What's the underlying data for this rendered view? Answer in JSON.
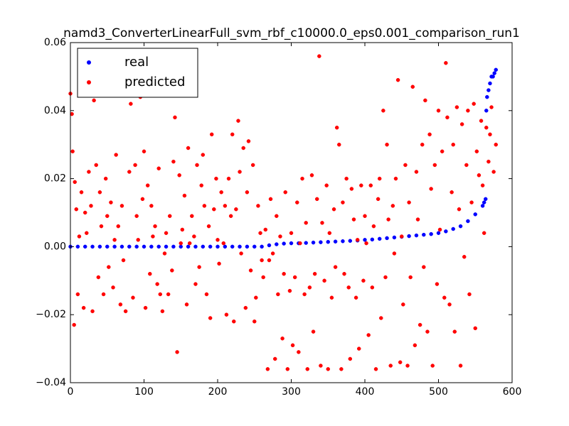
{
  "chart_data": {
    "type": "scatter",
    "title": "namd3_ConverterLinearFull_svm_rbf_c10000.0_eps0.001_comparison_run1",
    "xlim": [
      0,
      600
    ],
    "xticks": [
      0,
      100,
      200,
      300,
      400,
      500,
      600
    ],
    "ylim": [
      -0.04,
      0.06
    ],
    "yticks": [
      {
        "value": -0.04,
        "label": "−0.04"
      },
      {
        "value": -0.02,
        "label": "−0.02"
      },
      {
        "value": 0,
        "label": "0.00"
      },
      0.02,
      0.04,
      0.06
    ],
    "legend": "upper left",
    "series": [
      {
        "name": "real",
        "color": "#0000ff",
        "x": [
          0,
          10,
          20,
          30,
          40,
          50,
          60,
          70,
          80,
          90,
          100,
          110,
          120,
          130,
          140,
          150,
          160,
          170,
          180,
          190,
          200,
          210,
          220,
          230,
          240,
          250,
          260,
          270,
          280,
          290,
          300,
          310,
          320,
          330,
          340,
          350,
          360,
          370,
          380,
          390,
          400,
          410,
          420,
          430,
          440,
          450,
          460,
          470,
          480,
          490,
          500,
          510,
          520,
          530,
          540,
          550,
          560,
          562,
          564,
          565,
          566,
          568,
          570,
          572,
          574,
          576,
          578
        ],
        "values": [
          0,
          0,
          0,
          0,
          0,
          0,
          0,
          0,
          0,
          0,
          0,
          0,
          0,
          0,
          0,
          0,
          0,
          0,
          0,
          0,
          0,
          0,
          0,
          0,
          0,
          0,
          0,
          0.0004,
          0.0007,
          0.0009,
          0.001,
          0.001,
          0.0011,
          0.0012,
          0.0013,
          0.0014,
          0.0015,
          0.0016,
          0.0017,
          0.0018,
          0.002,
          0.0021,
          0.0023,
          0.0025,
          0.0027,
          0.0029,
          0.0031,
          0.0033,
          0.0035,
          0.0037,
          0.004,
          0.0045,
          0.0052,
          0.006,
          0.0075,
          0.0095,
          0.012,
          0.013,
          0.014,
          0.04,
          0.044,
          0.046,
          0.048,
          0.05,
          0.05,
          0.051,
          0.052
        ]
      },
      {
        "name": "predicted",
        "color": "#ff0000",
        "x": [
          0,
          2,
          3,
          5,
          6,
          8,
          10,
          12,
          15,
          18,
          20,
          22,
          25,
          28,
          30,
          32,
          35,
          38,
          40,
          42,
          45,
          48,
          50,
          52,
          55,
          58,
          60,
          62,
          65,
          68,
          70,
          72,
          75,
          78,
          80,
          82,
          85,
          88,
          90,
          92,
          95,
          98,
          100,
          102,
          105,
          108,
          110,
          112,
          115,
          118,
          120,
          122,
          125,
          128,
          130,
          133,
          135,
          138,
          140,
          142,
          145,
          148,
          150,
          152,
          155,
          158,
          160,
          162,
          165,
          168,
          170,
          172,
          175,
          178,
          180,
          182,
          185,
          188,
          190,
          192,
          195,
          198,
          200,
          202,
          205,
          208,
          210,
          212,
          215,
          218,
          220,
          222,
          225,
          228,
          230,
          232,
          235,
          238,
          240,
          242,
          245,
          248,
          250,
          252,
          255,
          258,
          260,
          262,
          265,
          268,
          270,
          272,
          275,
          278,
          280,
          282,
          285,
          288,
          290,
          292,
          295,
          298,
          300,
          302,
          305,
          308,
          310,
          312,
          315,
          318,
          320,
          322,
          325,
          328,
          330,
          332,
          335,
          338,
          340,
          342,
          345,
          348,
          350,
          352,
          355,
          358,
          360,
          362,
          365,
          368,
          370,
          372,
          375,
          378,
          380,
          382,
          385,
          388,
          390,
          392,
          395,
          398,
          400,
          402,
          405,
          408,
          410,
          412,
          415,
          418,
          420,
          422,
          425,
          428,
          430,
          432,
          435,
          438,
          440,
          442,
          445,
          448,
          450,
          452,
          455,
          458,
          460,
          462,
          465,
          468,
          470,
          472,
          475,
          478,
          480,
          482,
          485,
          488,
          490,
          492,
          495,
          498,
          500,
          502,
          505,
          508,
          510,
          512,
          515,
          518,
          520,
          522,
          525,
          528,
          530,
          532,
          535,
          538,
          540,
          542,
          545,
          548,
          550,
          552,
          555,
          558,
          560,
          562,
          565,
          568,
          570,
          572,
          575,
          578
        ],
        "values": [
          0.045,
          0.039,
          0.028,
          -0.023,
          0.019,
          0.011,
          -0.014,
          0.003,
          0.016,
          -0.018,
          0.01,
          0.004,
          0.022,
          0.012,
          -0.019,
          0.043,
          0.024,
          -0.009,
          0.016,
          0.006,
          -0.014,
          0.02,
          0.009,
          -0.006,
          0.013,
          -0.012,
          0.002,
          0.027,
          0.006,
          -0.017,
          0.012,
          -0.004,
          -0.019,
          0.045,
          0.022,
          0.042,
          -0.015,
          0.024,
          0.009,
          0.002,
          0.044,
          0.014,
          0.028,
          -0.018,
          0.018,
          -0.008,
          0.012,
          0.003,
          0.006,
          -0.011,
          0.023,
          -0.014,
          -0.019,
          -0.002,
          0.004,
          -0.014,
          0.009,
          -0.007,
          0.025,
          0.038,
          -0.031,
          0.021,
          0.001,
          0.005,
          0.015,
          -0.017,
          0.029,
          0.001,
          0.009,
          0.003,
          -0.011,
          0.024,
          -0.006,
          0.018,
          0.027,
          0.012,
          -0.014,
          0.006,
          -0.021,
          0.033,
          0.011,
          0.02,
          0.002,
          -0.005,
          0.016,
          0.001,
          0.012,
          -0.02,
          0.02,
          0.009,
          0.033,
          -0.022,
          0.011,
          0.037,
          0.022,
          -0.002,
          0.029,
          -0.018,
          0.016,
          0.031,
          -0.007,
          0.024,
          -0.022,
          -0.015,
          0.012,
          0.004,
          -0.004,
          -0.009,
          0.005,
          -0.036,
          -0.004,
          0.014,
          -0.002,
          -0.033,
          0.009,
          -0.014,
          0.003,
          -0.027,
          -0.008,
          0.016,
          -0.036,
          -0.013,
          0.004,
          -0.029,
          -0.009,
          0.013,
          -0.031,
          0.001,
          0.02,
          -0.014,
          0.007,
          -0.036,
          -0.012,
          0.021,
          -0.025,
          -0.008,
          0.014,
          0.056,
          -0.035,
          0.007,
          -0.01,
          0.018,
          -0.036,
          0.004,
          -0.015,
          0.011,
          -0.006,
          0.035,
          0.03,
          -0.036,
          0.013,
          -0.008,
          0.02,
          -0.012,
          -0.033,
          0.017,
          0.008,
          -0.015,
          0.002,
          -0.03,
          0.018,
          -0.01,
          0.009,
          0.001,
          -0.026,
          0.018,
          -0.012,
          0.006,
          -0.036,
          0.014,
          0.02,
          -0.021,
          0.04,
          -0.009,
          0.03,
          0.008,
          -0.035,
          0.012,
          -0.002,
          0.02,
          0.049,
          -0.034,
          0.003,
          -0.017,
          0.024,
          -0.035,
          0.013,
          -0.009,
          0.047,
          -0.029,
          0.022,
          0.008,
          -0.023,
          0.03,
          -0.006,
          0.043,
          -0.025,
          0.033,
          0.017,
          -0.035,
          0.024,
          -0.011,
          0.04,
          0.005,
          0.028,
          -0.015,
          0.054,
          0.038,
          -0.017,
          0.016,
          0.03,
          -0.025,
          0.041,
          0.011,
          -0.035,
          0.036,
          -0.003,
          0.024,
          0.04,
          -0.014,
          0.013,
          0.042,
          -0.024,
          0.028,
          0.021,
          0.037,
          0.018,
          0.004,
          0.035,
          0.025,
          0.033,
          0.041,
          0.022,
          0.03
        ]
      }
    ]
  }
}
